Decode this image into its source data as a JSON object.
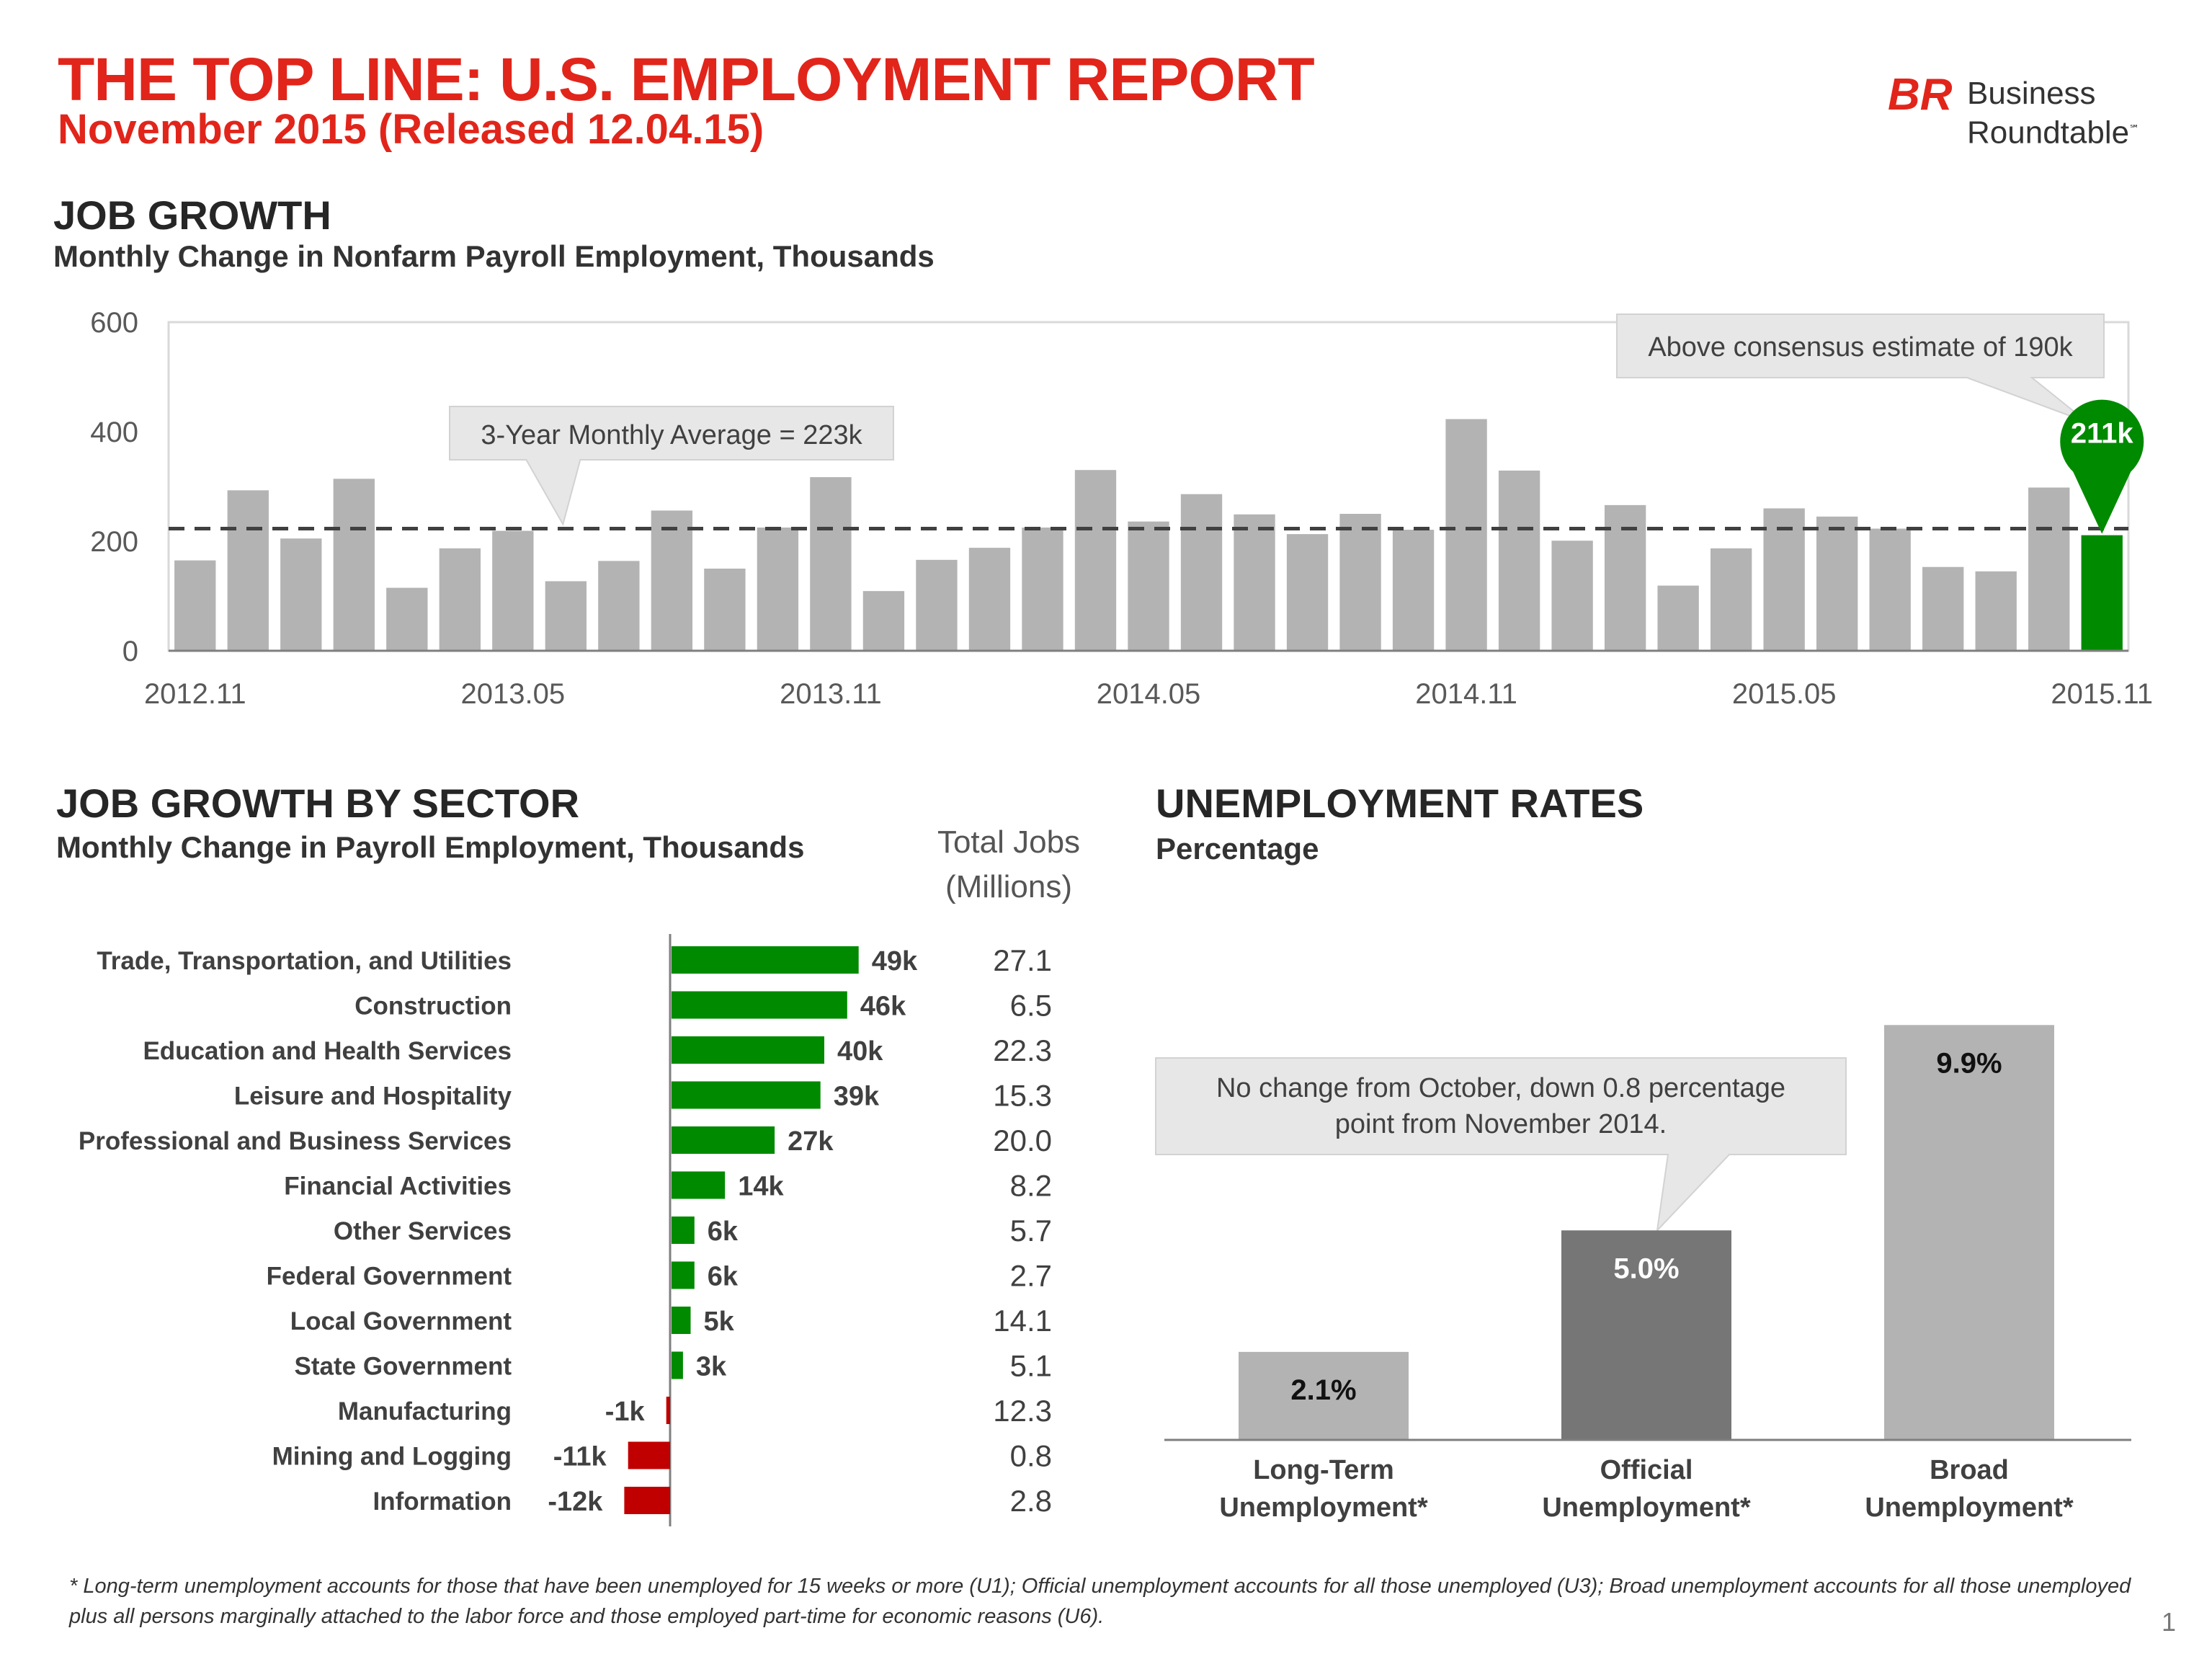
{
  "header": {
    "title": "THE TOP LINE: U.S. EMPLOYMENT REPORT",
    "subtitle": "November 2015 (Released 12.04.15)",
    "logo_mark": "BR",
    "logo_line1": "Business",
    "logo_line2": "Roundtable",
    "logo_trademark": "℠",
    "brand_color": "#e1251b"
  },
  "job_growth": {
    "title": "JOB GROWTH",
    "subtitle": "Monthly Change in Nonfarm Payroll Employment, Thousands",
    "average_label": "3-Year Monthly Average = 223k",
    "consensus_label": "Above consensus estimate of 190k",
    "latest_label": "211k"
  },
  "sector": {
    "title": "JOB GROWTH BY SECTOR",
    "subtitle": "Monthly Change in Payroll Employment, Thousands",
    "total_jobs_header_line1": "Total Jobs",
    "total_jobs_header_line2": "(Millions)"
  },
  "unemployment": {
    "title": "UNEMPLOYMENT RATES",
    "subtitle": "Percentage",
    "callout_line1": "No change from October, down 0.8 percentage",
    "callout_line2": "point from November 2014."
  },
  "footnote": "* Long-term unemployment accounts for those that have been unemployed for 15 weeks or more (U1); Official unemployment accounts for all those unemployed (U3); Broad unemployment accounts for all those unemployed plus all persons marginally attached to the labor force and those employed part-time for economic reasons (U6).",
  "page_number": "1",
  "chart_data": [
    {
      "type": "bar",
      "title": "JOB GROWTH",
      "subtitle": "Monthly Change in Nonfarm Payroll Employment, Thousands",
      "x_tick_labels": [
        "2012.11",
        "2013.05",
        "2013.11",
        "2014.05",
        "2014.11",
        "2015.05",
        "2015.11"
      ],
      "x_tick_every": 6,
      "x": [
        "2012.11",
        "2012.12",
        "2013.01",
        "2013.02",
        "2013.03",
        "2013.04",
        "2013.05",
        "2013.06",
        "2013.07",
        "2013.08",
        "2013.09",
        "2013.10",
        "2013.11",
        "2013.12",
        "2014.01",
        "2014.02",
        "2014.03",
        "2014.04",
        "2014.05",
        "2014.06",
        "2014.07",
        "2014.08",
        "2014.09",
        "2014.10",
        "2014.11",
        "2014.12",
        "2015.01",
        "2015.02",
        "2015.03",
        "2015.04",
        "2015.05",
        "2015.06",
        "2015.07",
        "2015.08",
        "2015.09",
        "2015.10",
        "2015.11"
      ],
      "values": [
        165,
        293,
        205,
        314,
        115,
        187,
        219,
        127,
        164,
        256,
        150,
        225,
        317,
        109,
        166,
        188,
        225,
        330,
        236,
        286,
        249,
        213,
        250,
        221,
        423,
        329,
        201,
        266,
        119,
        187,
        260,
        245,
        223,
        153,
        145,
        298,
        211
      ],
      "ylim": [
        0,
        600
      ],
      "yticks": [
        0,
        200,
        400,
        600
      ],
      "reference_line": 223,
      "grid": false,
      "bar_color": "#b3b3b3",
      "highlight_color": "#008a00",
      "highlight_index": 36
    },
    {
      "type": "bar",
      "orientation": "horizontal",
      "title": "JOB GROWTH BY SECTOR",
      "categories": [
        "Trade, Transportation, and Utilities",
        "Construction",
        "Education and Health Services",
        "Leisure and Hospitality",
        "Professional and Business Services",
        "Financial Activities",
        "Other Services",
        "Federal Government",
        "Local Government",
        "State Government",
        "Manufacturing",
        "Mining and Logging",
        "Information"
      ],
      "values": [
        49,
        46,
        40,
        39,
        27,
        14,
        6,
        6,
        5,
        3,
        -1,
        -11,
        -12
      ],
      "value_labels": [
        "49k",
        "46k",
        "40k",
        "39k",
        "27k",
        "14k",
        "6k",
        "6k",
        "5k",
        "3k",
        "-1k",
        "-11k",
        "-12k"
      ],
      "total_jobs": [
        "27.1",
        "6.5",
        "22.3",
        "15.3",
        "20.0",
        "8.2",
        "5.7",
        "2.7",
        "14.1",
        "5.1",
        "12.3",
        "0.8",
        "2.8"
      ],
      "positive_color": "#008a00",
      "negative_color": "#c00000"
    },
    {
      "type": "bar",
      "title": "UNEMPLOYMENT RATES",
      "categories": [
        "Long-Term Unemployment*",
        "Official Unemployment*",
        "Broad Unemployment*"
      ],
      "category_lines": [
        [
          "Long-Term",
          "Unemployment*"
        ],
        [
          "Official",
          "Unemployment*"
        ],
        [
          "Broad",
          "Unemployment*"
        ]
      ],
      "values": [
        2.1,
        5.0,
        9.9
      ],
      "value_labels": [
        "2.1%",
        "5.0%",
        "9.9%"
      ],
      "ylim": [
        0,
        10.8
      ],
      "colors": [
        "#b3b3b3",
        "#767676",
        "#b3b3b3"
      ],
      "label_colors": [
        "#111111",
        "#ffffff",
        "#111111"
      ]
    }
  ]
}
